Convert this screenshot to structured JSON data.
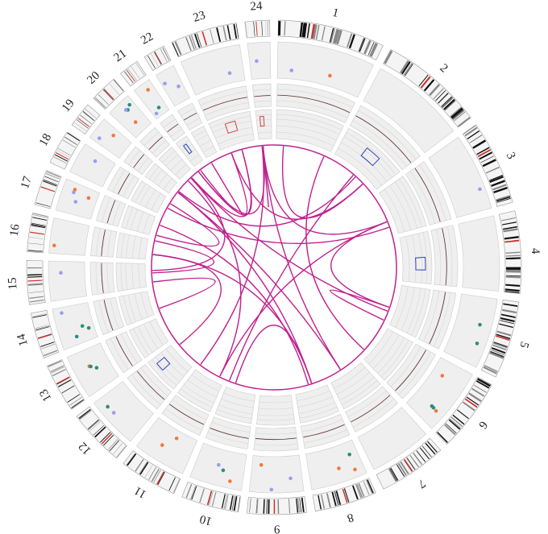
{
  "chromosomes": [
    "1",
    "2",
    "3",
    "4",
    "5",
    "6",
    "7",
    "8",
    "9",
    "10",
    "11",
    "12",
    "13",
    "14",
    "15",
    "16",
    "17",
    "18",
    "19",
    "20",
    "21",
    "22",
    "23",
    "24"
  ]
}
